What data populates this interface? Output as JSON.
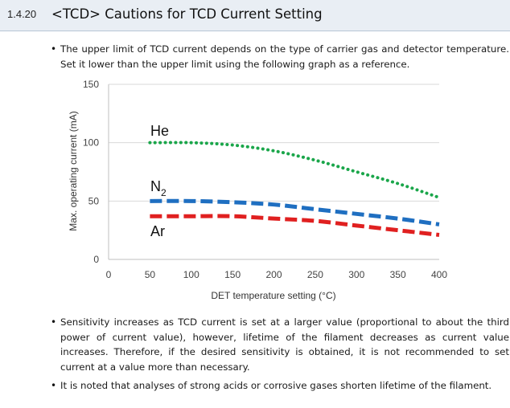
{
  "header": {
    "section_number": "1.4.20",
    "title": "<TCD> Cautions for TCD Current Setting"
  },
  "bullets": [
    "The upper limit of TCD current depends on the type of carrier gas and detector temperature. Set it lower than the upper limit using the following graph as a reference.",
    "Sensitivity increases as TCD current is set at a larger value (proportional to about the third power of current value), however, lifetime of the filament decreases as current value increases. Therefore, if the desired sensitivity is obtained, it is not recommended to set current at a value more than necessary.",
    "It is noted that analyses of strong acids or corrosive gases shorten lifetime of the filament."
  ],
  "bullet_symbol": "•",
  "chart_data": {
    "type": "line",
    "xlabel": "DET temperature setting (°C)",
    "ylabel": "Max. operating current (mA)",
    "xlim": [
      0,
      400
    ],
    "ylim": [
      0,
      150
    ],
    "xticks": [
      "0",
      "50",
      "100",
      "150",
      "200",
      "250",
      "300",
      "350",
      "400"
    ],
    "yticks": [
      "0",
      "50",
      "100",
      "150"
    ],
    "grid": "horizontal",
    "series": [
      {
        "name": "He",
        "color": "#1aa64a",
        "style": "dotted",
        "x": [
          50,
          100,
          150,
          200,
          250,
          300,
          350,
          400
        ],
        "y": [
          100,
          100,
          98,
          93,
          85,
          75,
          65,
          53
        ]
      },
      {
        "name": "N2",
        "label_base": "N",
        "label_sub": "2",
        "color": "#1f6fc1",
        "style": "dashed",
        "x": [
          50,
          100,
          150,
          200,
          250,
          300,
          350,
          400
        ],
        "y": [
          50,
          50,
          49,
          47,
          43,
          39,
          35,
          30
        ]
      },
      {
        "name": "Ar",
        "color": "#e02020",
        "style": "dashed",
        "x": [
          50,
          100,
          150,
          200,
          250,
          300,
          350,
          400
        ],
        "y": [
          37,
          37,
          37,
          35,
          33,
          29,
          25,
          21
        ]
      }
    ]
  }
}
